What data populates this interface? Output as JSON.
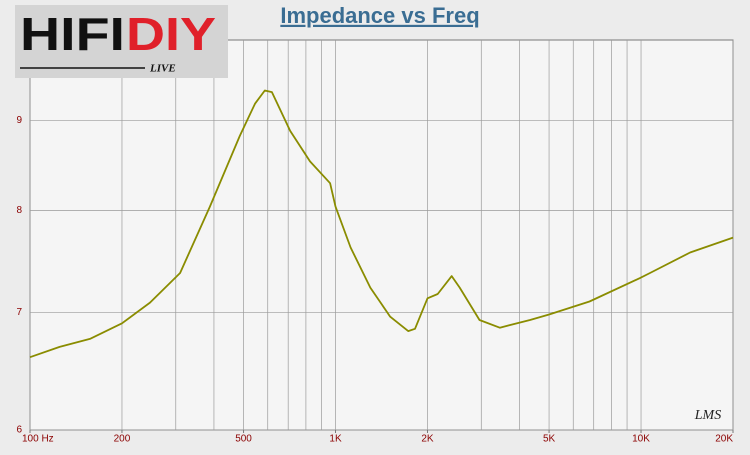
{
  "logo": {
    "part1": "HIFI",
    "part2": "DIY",
    "tagline": "LIVE"
  },
  "chart_data": {
    "type": "line",
    "title": "Impedance vs Freq",
    "watermark": "LMS",
    "x": [
      100,
      125,
      157,
      200,
      247,
      310,
      388,
      486,
      545,
      587,
      619,
      710,
      825,
      960,
      1000,
      1120,
      1300,
      1510,
      1730,
      1820,
      2000,
      2160,
      2400,
      2550,
      2960,
      3450,
      4330,
      5000,
      6780,
      9900,
      10700,
      14480,
      20000
    ],
    "series": [
      {
        "color": "#8a8c00",
        "values": [
          6.6,
          6.69,
          6.76,
          6.9,
          7.09,
          7.37,
          8.04,
          8.82,
          9.2,
          9.36,
          9.34,
          8.88,
          8.53,
          8.29,
          8.04,
          7.62,
          7.23,
          6.96,
          6.83,
          6.85,
          7.13,
          7.17,
          7.34,
          7.23,
          6.93,
          6.86,
          6.93,
          6.98,
          7.1,
          7.32,
          7.37,
          7.57,
          7.72
        ]
      }
    ],
    "xlim": [
      100,
      20000
    ],
    "ylim": [
      6,
      10
    ],
    "xlog": true,
    "ylog": true,
    "grid": true,
    "xticks": [
      {
        "value": 100,
        "label": "100 Hz"
      },
      200,
      500,
      {
        "value": 1000,
        "label": "1K"
      },
      {
        "value": 2000,
        "label": "2K"
      },
      {
        "value": 5000,
        "label": "5K"
      },
      {
        "value": 10000,
        "label": "10K"
      },
      {
        "value": 20000,
        "label": "20K"
      }
    ],
    "xgrid": [
      100,
      200,
      300,
      400,
      500,
      600,
      700,
      800,
      900,
      1000,
      2000,
      3000,
      4000,
      5000,
      6000,
      7000,
      8000,
      9000,
      10000,
      20000
    ],
    "yticks": [
      6,
      7,
      8,
      9
    ]
  }
}
